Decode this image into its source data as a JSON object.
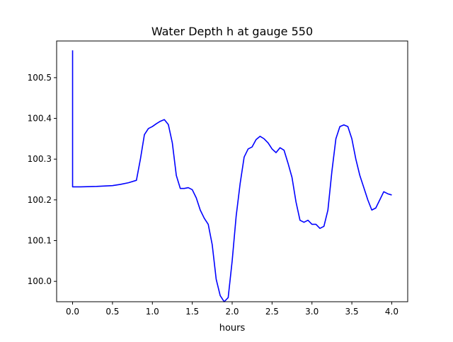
{
  "chart_data": {
    "type": "line",
    "title": "Water Depth h at gauge 550",
    "xlabel": "hours",
    "ylabel": "",
    "xlim": [
      -0.2,
      4.2
    ],
    "ylim": [
      99.95,
      100.59
    ],
    "xticks": [
      0.0,
      0.5,
      1.0,
      1.5,
      2.0,
      2.5,
      3.0,
      3.5,
      4.0
    ],
    "xtick_labels": [
      "0.0",
      "0.5",
      "1.0",
      "1.5",
      "2.0",
      "2.5",
      "3.0",
      "3.5",
      "4.0"
    ],
    "yticks": [
      100.0,
      100.1,
      100.2,
      100.3,
      100.4,
      100.5
    ],
    "ytick_labels": [
      "100.0",
      "100.1",
      "100.2",
      "100.3",
      "100.4",
      "100.5"
    ],
    "grid": false,
    "legend": "none",
    "series": [
      {
        "color": "#0000ff",
        "x": [
          0.0,
          0.0,
          0.0,
          0.1,
          0.3,
          0.5,
          0.6,
          0.7,
          0.8,
          0.85,
          0.9,
          0.95,
          1.0,
          1.05,
          1.1,
          1.15,
          1.2,
          1.25,
          1.3,
          1.35,
          1.4,
          1.45,
          1.5,
          1.55,
          1.6,
          1.65,
          1.7,
          1.75,
          1.8,
          1.85,
          1.9,
          1.95,
          2.0,
          2.05,
          2.1,
          2.15,
          2.2,
          2.25,
          2.3,
          2.35,
          2.4,
          2.45,
          2.5,
          2.55,
          2.6,
          2.65,
          2.7,
          2.75,
          2.8,
          2.85,
          2.9,
          2.95,
          3.0,
          3.05,
          3.1,
          3.15,
          3.2,
          3.25,
          3.3,
          3.35,
          3.4,
          3.45,
          3.5,
          3.55,
          3.6,
          3.65,
          3.7,
          3.75,
          3.8,
          3.85,
          3.9,
          3.95,
          4.0
        ],
        "y": [
          100.567,
          100.565,
          100.232,
          100.232,
          100.233,
          100.235,
          100.238,
          100.242,
          100.248,
          100.3,
          100.36,
          100.375,
          100.38,
          100.387,
          100.393,
          100.397,
          100.385,
          100.34,
          100.26,
          100.228,
          100.228,
          100.23,
          100.225,
          100.205,
          100.175,
          100.155,
          100.14,
          100.09,
          100.005,
          99.965,
          99.95,
          99.96,
          100.05,
          100.16,
          100.24,
          100.305,
          100.325,
          100.33,
          100.348,
          100.356,
          100.35,
          100.34,
          100.325,
          100.316,
          100.328,
          100.322,
          100.29,
          100.255,
          100.195,
          100.15,
          100.145,
          100.15,
          100.14,
          100.14,
          100.13,
          100.135,
          100.175,
          100.27,
          100.35,
          100.38,
          100.384,
          100.38,
          100.35,
          100.3,
          100.26,
          100.23,
          100.2,
          100.175,
          100.18,
          100.2,
          100.22,
          100.215,
          100.212
        ]
      }
    ]
  }
}
